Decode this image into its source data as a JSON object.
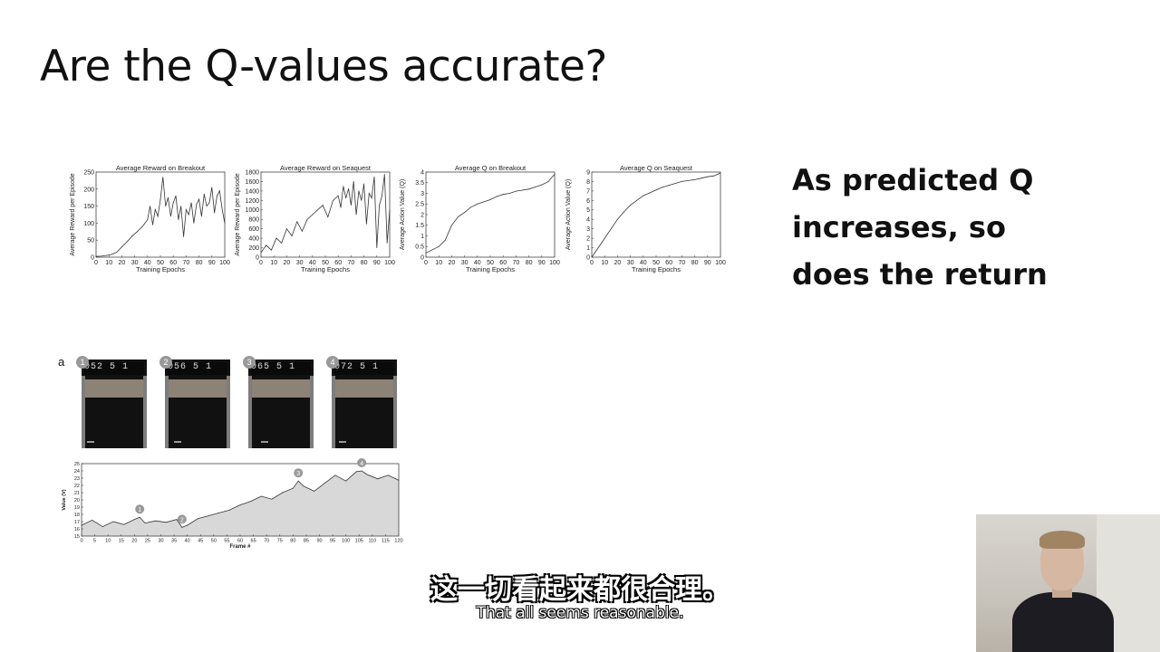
{
  "slide": {
    "title": "Are the Q-values accurate?",
    "side_text": [
      "As predicted Q",
      "increases, so",
      "does the return"
    ],
    "panel_label": "a",
    "subtitle_zh": "这一切看起来都很合理。",
    "subtitle_en": "That all seems reasonable."
  },
  "frames": [
    {
      "badge": "1",
      "score": "052  5  1"
    },
    {
      "badge": "2",
      "score": "056  5  1"
    },
    {
      "badge": "3",
      "score": "065  5  1"
    },
    {
      "badge": "4",
      "score": "072  5  1"
    }
  ],
  "colors": {
    "line": "#333333",
    "fill": "#d8d8d8",
    "badge": "#999999"
  },
  "chart_data": [
    {
      "type": "line",
      "title": "Average Reward on Breakout",
      "xlabel": "Training Epochs",
      "ylabel": "Average Reward per Episode",
      "xlim": [
        0,
        100
      ],
      "ylim": [
        0,
        250
      ],
      "xticks": [
        0,
        10,
        20,
        30,
        40,
        50,
        60,
        70,
        80,
        90,
        100
      ],
      "yticks": [
        0,
        50,
        100,
        150,
        200,
        250
      ],
      "x": [
        0,
        4,
        8,
        12,
        16,
        20,
        24,
        28,
        32,
        36,
        40,
        42,
        44,
        46,
        48,
        50,
        52,
        54,
        56,
        58,
        60,
        62,
        64,
        66,
        68,
        70,
        72,
        74,
        76,
        78,
        80,
        82,
        84,
        86,
        88,
        90,
        92,
        94,
        96,
        98,
        100
      ],
      "y": [
        2,
        3,
        5,
        8,
        14,
        30,
        45,
        62,
        75,
        90,
        110,
        150,
        95,
        140,
        120,
        170,
        235,
        150,
        175,
        120,
        160,
        180,
        110,
        150,
        60,
        140,
        125,
        160,
        100,
        155,
        170,
        120,
        185,
        150,
        160,
        205,
        130,
        180,
        195,
        140,
        100
      ]
    },
    {
      "type": "line",
      "title": "Average Reward on Seaquest",
      "xlabel": "Training Epochs",
      "ylabel": "Average Reward per Episode",
      "xlim": [
        0,
        100
      ],
      "ylim": [
        0,
        1800
      ],
      "xticks": [
        0,
        10,
        20,
        30,
        40,
        50,
        60,
        70,
        80,
        90,
        100
      ],
      "yticks": [
        0,
        200,
        400,
        600,
        800,
        1000,
        1200,
        1400,
        1600,
        1800
      ],
      "x": [
        0,
        4,
        8,
        12,
        16,
        20,
        24,
        28,
        32,
        36,
        40,
        44,
        48,
        52,
        56,
        60,
        62,
        64,
        66,
        68,
        70,
        72,
        74,
        76,
        78,
        80,
        82,
        84,
        86,
        88,
        90,
        92,
        94,
        96,
        98,
        100
      ],
      "y": [
        100,
        250,
        150,
        400,
        300,
        600,
        450,
        750,
        550,
        800,
        900,
        1000,
        1100,
        850,
        1200,
        1300,
        1050,
        1500,
        1250,
        1450,
        1100,
        1600,
        900,
        1400,
        1200,
        1550,
        700,
        1350,
        1250,
        1700,
        200,
        1100,
        1300,
        1750,
        300,
        1000
      ]
    },
    {
      "type": "line",
      "title": "Average Q on Breakout",
      "xlabel": "Training Epochs",
      "ylabel": "Average Action Value (Q)",
      "xlim": [
        0,
        100
      ],
      "ylim": [
        0,
        4
      ],
      "xticks": [
        0,
        10,
        20,
        30,
        40,
        50,
        60,
        70,
        80,
        90,
        100
      ],
      "yticks": [
        0,
        0.5,
        1,
        1.5,
        2,
        2.5,
        3,
        3.5,
        4
      ],
      "x": [
        0,
        5,
        10,
        15,
        20,
        25,
        30,
        35,
        40,
        45,
        50,
        55,
        60,
        65,
        70,
        75,
        80,
        85,
        90,
        95,
        100
      ],
      "y": [
        0.2,
        0.35,
        0.5,
        0.8,
        1.5,
        1.9,
        2.1,
        2.35,
        2.5,
        2.6,
        2.7,
        2.85,
        2.95,
        3.0,
        3.1,
        3.15,
        3.2,
        3.3,
        3.4,
        3.55,
        3.9
      ]
    },
    {
      "type": "line",
      "title": "Average Q on Seaquest",
      "xlabel": "Training Epochs",
      "ylabel": "Average Action Value (Q)",
      "xlim": [
        0,
        100
      ],
      "ylim": [
        0,
        9
      ],
      "xticks": [
        0,
        10,
        20,
        30,
        40,
        50,
        60,
        70,
        80,
        90,
        100
      ],
      "yticks": [
        0,
        1,
        2,
        3,
        4,
        5,
        6,
        7,
        8,
        9
      ],
      "x": [
        0,
        5,
        10,
        15,
        20,
        25,
        30,
        35,
        40,
        45,
        50,
        55,
        60,
        65,
        70,
        75,
        80,
        85,
        90,
        95,
        100
      ],
      "y": [
        0,
        1.0,
        2.0,
        3.0,
        4.0,
        4.8,
        5.5,
        6.0,
        6.5,
        6.8,
        7.1,
        7.4,
        7.6,
        7.8,
        8.0,
        8.1,
        8.2,
        8.35,
        8.5,
        8.6,
        8.9
      ]
    },
    {
      "type": "area",
      "title": "",
      "xlabel": "Frame #",
      "ylabel": "Value (V)",
      "xlim": [
        0,
        120
      ],
      "ylim": [
        15,
        25
      ],
      "xticks": [
        0,
        5,
        10,
        15,
        20,
        25,
        30,
        35,
        40,
        45,
        50,
        55,
        60,
        65,
        70,
        75,
        80,
        85,
        90,
        95,
        100,
        105,
        110,
        115,
        120
      ],
      "yticks": [
        15,
        16,
        17,
        18,
        19,
        20,
        21,
        22,
        23,
        24,
        25
      ],
      "x": [
        0,
        4,
        8,
        12,
        16,
        20,
        22,
        24,
        28,
        32,
        36,
        38,
        40,
        44,
        48,
        52,
        56,
        60,
        64,
        68,
        72,
        76,
        80,
        82,
        84,
        88,
        92,
        96,
        100,
        104,
        106,
        108,
        112,
        116,
        120
      ],
      "y": [
        16.5,
        17.2,
        16.3,
        17.0,
        16.6,
        17.3,
        17.6,
        16.8,
        17.1,
        16.9,
        17.3,
        16.2,
        16.5,
        17.4,
        17.8,
        18.2,
        18.6,
        19.3,
        19.8,
        20.5,
        20.1,
        21.0,
        21.6,
        22.6,
        21.9,
        21.2,
        22.3,
        23.4,
        22.6,
        23.9,
        24.0,
        23.5,
        22.9,
        23.4,
        22.7
      ],
      "annotations": [
        {
          "label": "1",
          "x": 22,
          "y": 17.6
        },
        {
          "label": "2",
          "x": 38,
          "y": 16.2
        },
        {
          "label": "3",
          "x": 82,
          "y": 22.6
        },
        {
          "label": "4",
          "x": 106,
          "y": 24.0
        }
      ]
    }
  ]
}
